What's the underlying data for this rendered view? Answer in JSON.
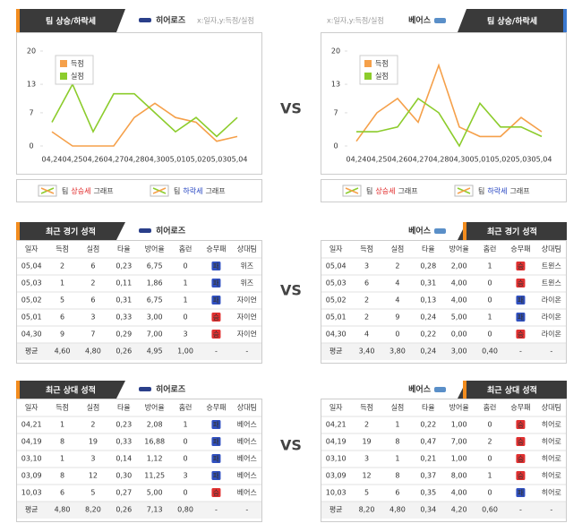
{
  "vs": [
    "VS",
    "VS",
    "VS"
  ],
  "chart_data": [
    {
      "type": "line",
      "categories": [
        "04,24",
        "04,25",
        "04,26",
        "04,27",
        "04,28",
        "04,30",
        "05,01",
        "05,02",
        "05,03",
        "05,04"
      ],
      "series": [
        {
          "name": "득점",
          "color": "#f5a04a",
          "values": [
            3,
            0,
            0,
            0,
            6,
            9,
            6,
            5,
            1,
            2
          ]
        },
        {
          "name": "실점",
          "color": "#8ccc2c",
          "values": [
            5,
            13,
            3,
            11,
            11,
            7,
            3,
            6,
            2,
            6
          ]
        }
      ],
      "ylim": [
        0,
        20
      ],
      "yticks": [
        0,
        7,
        13,
        20
      ]
    },
    {
      "type": "line",
      "categories": [
        "04,24",
        "04,25",
        "04,26",
        "04,27",
        "04,28",
        "04,30",
        "05,01",
        "05,02",
        "05,03",
        "05,04"
      ],
      "series": [
        {
          "name": "득점",
          "color": "#f5a04a",
          "values": [
            1,
            7,
            10,
            5,
            17,
            4,
            2,
            2,
            6,
            3
          ]
        },
        {
          "name": "실점",
          "color": "#8ccc2c",
          "values": [
            3,
            3,
            4,
            10,
            7,
            0,
            9,
            4,
            4,
            2
          ]
        }
      ],
      "ylim": [
        0,
        20
      ],
      "yticks": [
        0,
        7,
        13,
        20
      ]
    }
  ],
  "trend": [
    {
      "title": "팀 상승/하락세",
      "team": "히어로즈",
      "axis_note": "x:일자,y:득점/실점",
      "legend": [
        {
          "pre": "팀",
          "key": "상승세",
          "post": "그래프",
          "color": "#e02020"
        },
        {
          "pre": "팀",
          "key": "하락세",
          "post": "그래프",
          "color": "#2040c0"
        }
      ]
    },
    {
      "title": "팀 상승/하락세",
      "team": "베어스",
      "axis_note": "x:일자,y:득점/실점",
      "legend": [
        {
          "pre": "팀",
          "key": "상승세",
          "post": "그래프",
          "color": "#e02020"
        },
        {
          "pre": "팀",
          "key": "하락세",
          "post": "그래프",
          "color": "#2040c0"
        }
      ]
    }
  ],
  "tables": [
    {
      "title": "최근 경기 성적",
      "team": "히어로즈",
      "columns": [
        "일자",
        "득점",
        "실점",
        "타율",
        "방어율",
        "홈런",
        "승무패",
        "상대팀"
      ],
      "rows": [
        [
          "05,04",
          "2",
          "6",
          "0,23",
          "6,75",
          "0",
          "패",
          "위즈"
        ],
        [
          "05,03",
          "1",
          "2",
          "0,11",
          "1,86",
          "1",
          "패",
          "위즈"
        ],
        [
          "05,02",
          "5",
          "6",
          "0,31",
          "6,75",
          "1",
          "패",
          "자이언"
        ],
        [
          "05,01",
          "6",
          "3",
          "0,33",
          "3,00",
          "0",
          "승",
          "자이언"
        ],
        [
          "04,30",
          "9",
          "7",
          "0,29",
          "7,00",
          "3",
          "승",
          "자이언"
        ]
      ],
      "result_colors": [
        "#3050c0",
        "#3050c0",
        "#3050c0",
        "#e03030",
        "#e03030"
      ],
      "average": [
        "평균",
        "4,60",
        "4,80",
        "0,26",
        "4,95",
        "1,00",
        "-",
        "-"
      ]
    },
    {
      "title": "최근 경기 성적",
      "team": "베어스",
      "columns": [
        "일자",
        "득점",
        "실점",
        "타율",
        "방어율",
        "홈런",
        "승무패",
        "상대팀"
      ],
      "rows": [
        [
          "05,04",
          "3",
          "2",
          "0,28",
          "2,00",
          "1",
          "승",
          "트윈스"
        ],
        [
          "05,03",
          "6",
          "4",
          "0,31",
          "4,00",
          "0",
          "승",
          "트윈스"
        ],
        [
          "05,02",
          "2",
          "4",
          "0,13",
          "4,00",
          "0",
          "패",
          "라이온"
        ],
        [
          "05,01",
          "2",
          "9",
          "0,24",
          "5,00",
          "1",
          "패",
          "라이온"
        ],
        [
          "04,30",
          "4",
          "0",
          "0,22",
          "0,00",
          "0",
          "승",
          "라이온"
        ]
      ],
      "result_colors": [
        "#e03030",
        "#e03030",
        "#3050c0",
        "#3050c0",
        "#e03030"
      ],
      "average": [
        "평균",
        "3,40",
        "3,80",
        "0,24",
        "3,00",
        "0,40",
        "-",
        "-"
      ]
    },
    {
      "title": "최근 상대 성적",
      "team": "히어로즈",
      "columns": [
        "일자",
        "득점",
        "실점",
        "타율",
        "방어율",
        "홈런",
        "승무패",
        "상대팀"
      ],
      "rows": [
        [
          "04,21",
          "1",
          "2",
          "0,23",
          "2,08",
          "1",
          "패",
          "베어스"
        ],
        [
          "04,19",
          "8",
          "19",
          "0,33",
          "16,88",
          "0",
          "패",
          "베어스"
        ],
        [
          "03,10",
          "1",
          "3",
          "0,14",
          "1,12",
          "0",
          "패",
          "베어스"
        ],
        [
          "03,09",
          "8",
          "12",
          "0,30",
          "11,25",
          "3",
          "패",
          "베어스"
        ],
        [
          "10,03",
          "6",
          "5",
          "0,27",
          "5,00",
          "0",
          "승",
          "베어스"
        ]
      ],
      "result_colors": [
        "#3050c0",
        "#3050c0",
        "#3050c0",
        "#3050c0",
        "#e03030"
      ],
      "average": [
        "평균",
        "4,80",
        "8,20",
        "0,26",
        "7,13",
        "0,80",
        "-",
        "-"
      ]
    },
    {
      "title": "최근 상대 성적",
      "team": "베어스",
      "columns": [
        "일자",
        "득점",
        "실점",
        "타율",
        "방어율",
        "홈런",
        "승무패",
        "상대팀"
      ],
      "rows": [
        [
          "04,21",
          "2",
          "1",
          "0,22",
          "1,00",
          "0",
          "승",
          "히어로"
        ],
        [
          "04,19",
          "19",
          "8",
          "0,47",
          "7,00",
          "2",
          "승",
          "히어로"
        ],
        [
          "03,10",
          "3",
          "1",
          "0,21",
          "1,00",
          "0",
          "승",
          "히어로"
        ],
        [
          "03,09",
          "12",
          "8",
          "0,37",
          "8,00",
          "1",
          "승",
          "히어로"
        ],
        [
          "10,03",
          "5",
          "6",
          "0,35",
          "4,00",
          "0",
          "패",
          "히어로"
        ]
      ],
      "result_colors": [
        "#e03030",
        "#e03030",
        "#e03030",
        "#e03030",
        "#3050c0"
      ],
      "average": [
        "평균",
        "8,20",
        "4,80",
        "0,34",
        "4,20",
        "0,60",
        "-",
        "-"
      ]
    }
  ]
}
